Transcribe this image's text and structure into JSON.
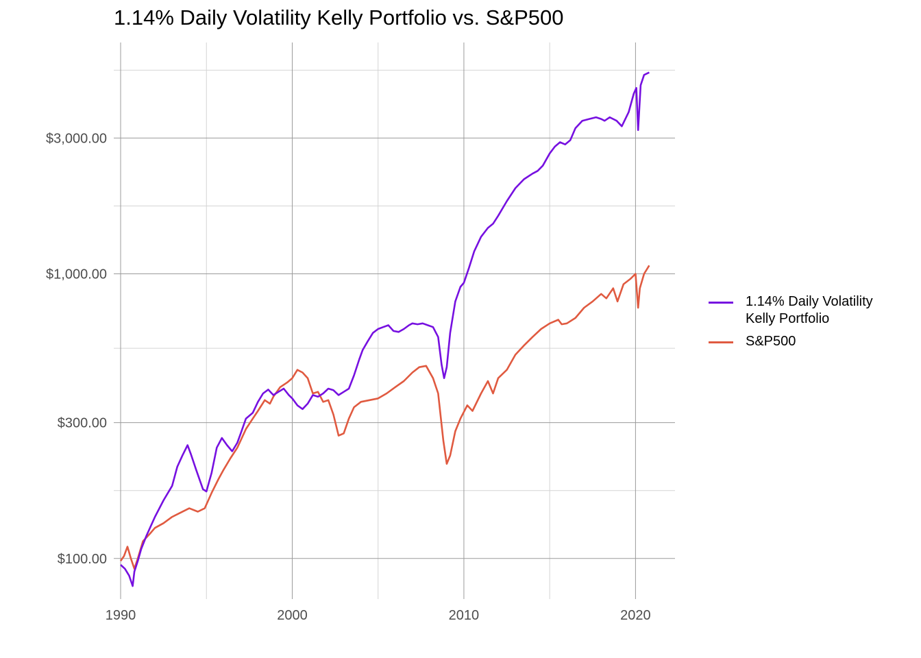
{
  "chart_data": {
    "type": "line",
    "title": "1.14% Daily Volatility Kelly Portfolio vs. S&P500",
    "xlabel": "",
    "ylabel": "",
    "x_scale": "linear",
    "y_scale": "log",
    "xlim": [
      1989.6,
      2022.3
    ],
    "ylim": [
      72,
      6500
    ],
    "x_ticks": [
      1990,
      2000,
      2010,
      2020
    ],
    "x_tick_labels": [
      "1990",
      "2000",
      "2010",
      "2020"
    ],
    "y_ticks": [
      100,
      300,
      1000,
      3000
    ],
    "y_tick_labels": [
      "$100.00",
      "$300.00",
      "$1,000.00",
      "$3,000.00"
    ],
    "grid": true,
    "legend_position": "right",
    "series": [
      {
        "name": "1.14% Daily Volatility Kelly Portfolio",
        "color": "#7610e0",
        "x": [
          1990.0,
          1990.25,
          1990.5,
          1990.7,
          1990.8,
          1991.0,
          1991.2,
          1991.5,
          1992.0,
          1992.5,
          1993.0,
          1993.3,
          1993.6,
          1993.9,
          1994.1,
          1994.4,
          1994.8,
          1995.0,
          1995.3,
          1995.6,
          1995.9,
          1996.2,
          1996.5,
          1996.8,
          1997.0,
          1997.3,
          1997.7,
          1998.0,
          1998.3,
          1998.6,
          1998.9,
          1999.2,
          1999.5,
          1999.8,
          2000.0,
          2000.3,
          2000.6,
          2000.9,
          2001.2,
          2001.5,
          2001.8,
          2002.1,
          2002.4,
          2002.7,
          2003.0,
          2003.3,
          2003.6,
          2003.9,
          2004.1,
          2004.4,
          2004.7,
          2005.0,
          2005.3,
          2005.6,
          2005.9,
          2006.2,
          2006.5,
          2006.8,
          2007.0,
          2007.3,
          2007.6,
          2007.9,
          2008.2,
          2008.5,
          2008.7,
          2008.85,
          2009.0,
          2009.2,
          2009.5,
          2009.8,
          2010.0,
          2010.3,
          2010.6,
          2011.0,
          2011.4,
          2011.7,
          2012.0,
          2012.5,
          2013.0,
          2013.5,
          2014.0,
          2014.3,
          2014.6,
          2015.0,
          2015.3,
          2015.6,
          2015.9,
          2016.2,
          2016.5,
          2016.9,
          2017.3,
          2017.7,
          2018.0,
          2018.2,
          2018.5,
          2018.9,
          2019.2,
          2019.6,
          2019.9,
          2020.05,
          2020.15,
          2020.3,
          2020.5,
          2020.8
        ],
        "values": [
          95,
          92,
          87,
          80,
          90,
          98,
          108,
          120,
          140,
          160,
          180,
          210,
          230,
          250,
          232,
          205,
          175,
          172,
          200,
          245,
          265,
          250,
          238,
          255,
          275,
          310,
          325,
          355,
          380,
          392,
          375,
          385,
          395,
          375,
          365,
          345,
          335,
          350,
          375,
          370,
          380,
          395,
          390,
          375,
          385,
          395,
          440,
          500,
          540,
          580,
          620,
          640,
          650,
          660,
          630,
          625,
          640,
          660,
          670,
          665,
          670,
          660,
          650,
          600,
          480,
          430,
          470,
          620,
          800,
          900,
          930,
          1050,
          1200,
          1350,
          1450,
          1500,
          1600,
          1800,
          2000,
          2150,
          2250,
          2300,
          2400,
          2650,
          2800,
          2900,
          2850,
          2950,
          3250,
          3450,
          3500,
          3550,
          3500,
          3450,
          3550,
          3450,
          3300,
          3700,
          4300,
          4500,
          3200,
          4600,
          5000,
          5100
        ]
      },
      {
        "name": "S&P500",
        "color": "#e05a40",
        "x": [
          1990.0,
          1990.2,
          1990.4,
          1990.6,
          1990.8,
          1991.0,
          1991.3,
          1991.7,
          1992.0,
          1992.5,
          1993.0,
          1993.5,
          1994.0,
          1994.5,
          1994.9,
          1995.3,
          1995.7,
          1996.0,
          1996.4,
          1996.8,
          1997.0,
          1997.3,
          1997.7,
          1998.0,
          1998.4,
          1998.7,
          1998.9,
          1999.3,
          1999.7,
          2000.0,
          2000.3,
          2000.6,
          2000.9,
          2001.2,
          2001.5,
          2001.8,
          2002.1,
          2002.4,
          2002.7,
          2003.0,
          2003.3,
          2003.6,
          2004.0,
          2004.5,
          2005.0,
          2005.5,
          2006.0,
          2006.5,
          2007.0,
          2007.4,
          2007.8,
          2008.2,
          2008.5,
          2008.8,
          2009.0,
          2009.2,
          2009.5,
          2009.8,
          2010.2,
          2010.5,
          2011.0,
          2011.4,
          2011.7,
          2012.0,
          2012.5,
          2013.0,
          2013.5,
          2014.0,
          2014.5,
          2015.0,
          2015.5,
          2015.7,
          2016.0,
          2016.5,
          2017.0,
          2017.5,
          2018.0,
          2018.3,
          2018.7,
          2018.95,
          2019.3,
          2019.7,
          2020.0,
          2020.15,
          2020.25,
          2020.5,
          2020.8
        ],
        "values": [
          98,
          102,
          110,
          100,
          92,
          100,
          115,
          122,
          128,
          133,
          140,
          145,
          150,
          146,
          150,
          170,
          190,
          205,
          225,
          245,
          260,
          285,
          310,
          330,
          360,
          350,
          370,
          400,
          415,
          430,
          460,
          450,
          430,
          380,
          385,
          355,
          360,
          320,
          270,
          275,
          310,
          340,
          355,
          360,
          365,
          380,
          400,
          420,
          450,
          470,
          475,
          430,
          380,
          260,
          215,
          230,
          280,
          310,
          345,
          330,
          380,
          420,
          380,
          430,
          460,
          520,
          560,
          600,
          640,
          670,
          690,
          665,
          670,
          700,
          760,
          800,
          850,
          820,
          890,
          800,
          920,
          960,
          1000,
          760,
          890,
          1000,
          1070
        ]
      }
    ]
  }
}
